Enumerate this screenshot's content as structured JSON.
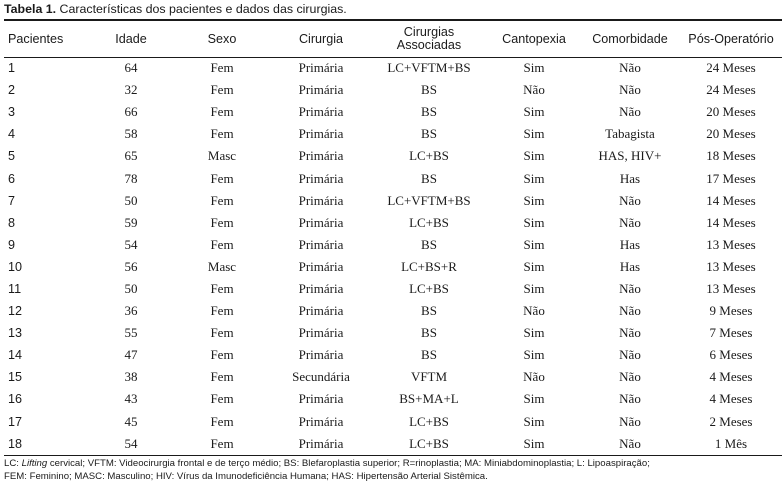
{
  "caption": {
    "label": "Tabela 1.",
    "text": " Características dos pacientes e dados das cirurgias."
  },
  "table": {
    "headers": [
      "Pacientes",
      "Idade",
      "Sexo",
      "Cirurgia",
      "Cirurgias Associadas",
      "Cantopexia",
      "Comorbidade",
      "Pós-Operatório"
    ],
    "rows": [
      [
        "1",
        "64",
        "Fem",
        "Primária",
        "LC+VFTM+BS",
        "Sim",
        "Não",
        "24 Meses"
      ],
      [
        "2",
        "32",
        "Fem",
        "Primária",
        "BS",
        "Não",
        "Não",
        "24 Meses"
      ],
      [
        "3",
        "66",
        "Fem",
        "Primária",
        "BS",
        "Sim",
        "Não",
        "20 Meses"
      ],
      [
        "4",
        "58",
        "Fem",
        "Primária",
        "BS",
        "Sim",
        "Tabagista",
        "20 Meses"
      ],
      [
        "5",
        "65",
        "Masc",
        "Primária",
        "LC+BS",
        "Sim",
        "HAS, HIV+",
        "18 Meses"
      ],
      [
        "6",
        "78",
        "Fem",
        "Primária",
        "BS",
        "Sim",
        "Has",
        "17 Meses"
      ],
      [
        "7",
        "50",
        "Fem",
        "Primária",
        "LC+VFTM+BS",
        "Sim",
        "Não",
        "14 Meses"
      ],
      [
        "8",
        "59",
        "Fem",
        "Primária",
        "LC+BS",
        "Sim",
        "Não",
        "14 Meses"
      ],
      [
        "9",
        "54",
        "Fem",
        "Primária",
        "BS",
        "Sim",
        "Has",
        "13 Meses"
      ],
      [
        "10",
        "56",
        "Masc",
        "Primária",
        "LC+BS+R",
        "Sim",
        "Has",
        "13 Meses"
      ],
      [
        "11",
        "50",
        "Fem",
        "Primária",
        "LC+BS",
        "Sim",
        "Não",
        "13 Meses"
      ],
      [
        "12",
        "36",
        "Fem",
        "Primária",
        "BS",
        "Não",
        "Não",
        "9 Meses"
      ],
      [
        "13",
        "55",
        "Fem",
        "Primária",
        "BS",
        "Sim",
        "Não",
        "7 Meses"
      ],
      [
        "14",
        "47",
        "Fem",
        "Primária",
        "BS",
        "Sim",
        "Não",
        "6 Meses"
      ],
      [
        "15",
        "38",
        "Fem",
        "Secundária",
        "VFTM",
        "Não",
        "Não",
        "4 Meses"
      ],
      [
        "16",
        "43",
        "Fem",
        "Primária",
        "BS+MA+L",
        "Sim",
        "Não",
        "4 Meses"
      ],
      [
        "17",
        "45",
        "Fem",
        "Primária",
        "LC+BS",
        "Sim",
        "Não",
        "2 Meses"
      ],
      [
        "18",
        "54",
        "Fem",
        "Primária",
        "LC+BS",
        "Sim",
        "Não",
        "1 Mês"
      ]
    ]
  },
  "footnote": {
    "line1_pre": "LC: ",
    "line1_italic": "Lifting",
    "line1_post": " cervical; VFTM: Videocirurgia frontal e de terço médio; BS: Blefaroplastia superior; R=rinoplastia; MA: Miniabdominoplastia; L: Lipoaspiração;",
    "line2": "FEM: Feminino; MASC: Masculino; HIV: Vírus da Imunodeficiência Humana; HAS: Hipertensão Arterial Sistêmica."
  }
}
